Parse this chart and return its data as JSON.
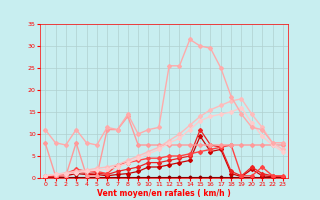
{
  "background_color": "#c8eef0",
  "grid_color": "#b0d0d0",
  "text_color": "#ff0000",
  "xlabel": "Vent moyen/en rafales ( km/h )",
  "xlim": [
    -0.5,
    23.5
  ],
  "ylim": [
    0,
    35
  ],
  "xticks": [
    0,
    1,
    2,
    3,
    4,
    5,
    6,
    7,
    8,
    9,
    10,
    11,
    12,
    13,
    14,
    15,
    16,
    17,
    18,
    19,
    20,
    21,
    22,
    23
  ],
  "yticks": [
    0,
    5,
    10,
    15,
    20,
    25,
    30,
    35
  ],
  "series": [
    {
      "x": [
        0,
        1,
        2,
        3,
        4,
        5,
        6,
        7,
        8,
        9,
        10,
        11,
        12,
        13,
        14,
        15,
        16,
        17,
        18,
        19,
        20,
        21,
        22,
        23
      ],
      "y": [
        0.3,
        0.3,
        0.3,
        0.3,
        0.3,
        0.3,
        0.3,
        0.3,
        0.3,
        0.3,
        0.3,
        0.3,
        0.3,
        0.3,
        0.3,
        0.3,
        0.3,
        0.3,
        0.3,
        0.3,
        0.3,
        0.3,
        0.3,
        0.3
      ],
      "color": "#880000",
      "lw": 0.8,
      "marker": "D",
      "ms": 1.5
    },
    {
      "x": [
        0,
        1,
        2,
        3,
        4,
        5,
        6,
        7,
        8,
        9,
        10,
        11,
        12,
        13,
        14,
        15,
        16,
        17,
        18,
        19,
        20,
        21,
        22,
        23
      ],
      "y": [
        0.3,
        0.3,
        0.5,
        1.0,
        0.8,
        0.8,
        0.5,
        0.8,
        1.0,
        1.5,
        2.5,
        2.5,
        3.0,
        3.5,
        4.0,
        9.5,
        6.0,
        6.5,
        1.0,
        0.3,
        2.0,
        0.5,
        0.3,
        0.3
      ],
      "color": "#cc0000",
      "lw": 0.9,
      "marker": "D",
      "ms": 2
    },
    {
      "x": [
        0,
        1,
        2,
        3,
        4,
        5,
        6,
        7,
        8,
        9,
        10,
        11,
        12,
        13,
        14,
        15,
        16,
        17,
        18,
        19,
        20,
        21,
        22,
        23
      ],
      "y": [
        0.3,
        0.3,
        0.8,
        1.5,
        1.0,
        1.2,
        0.8,
        1.5,
        2.0,
        2.5,
        3.5,
        3.5,
        4.0,
        4.5,
        5.0,
        11.0,
        7.5,
        7.0,
        1.5,
        0.5,
        2.5,
        1.0,
        0.5,
        0.3
      ],
      "color": "#ee2222",
      "lw": 0.9,
      "marker": "D",
      "ms": 2
    },
    {
      "x": [
        0,
        1,
        2,
        3,
        4,
        5,
        6,
        7,
        8,
        9,
        10,
        11,
        12,
        13,
        14,
        15,
        16,
        17,
        18,
        19,
        20,
        21,
        22,
        23
      ],
      "y": [
        0.5,
        0.5,
        1.0,
        2.0,
        1.5,
        1.5,
        1.0,
        3.0,
        3.5,
        4.0,
        4.5,
        4.5,
        5.0,
        5.0,
        5.5,
        6.0,
        6.5,
        7.0,
        7.5,
        0.5,
        0.5,
        2.5,
        0.5,
        0.5
      ],
      "color": "#ff4444",
      "lw": 1.0,
      "marker": "D",
      "ms": 2
    },
    {
      "x": [
        0,
        1,
        2,
        3,
        4,
        5,
        6,
        7,
        8,
        9,
        10,
        11,
        12,
        13,
        14,
        15,
        16,
        17,
        18,
        19,
        20,
        21,
        22,
        23
      ],
      "y": [
        8.0,
        0.5,
        0.5,
        8.0,
        0.5,
        0.5,
        11.0,
        11.0,
        14.0,
        7.5,
        7.5,
        7.5,
        7.5,
        7.5,
        7.5,
        7.5,
        7.5,
        7.5,
        7.5,
        7.5,
        7.5,
        7.5,
        7.5,
        7.5
      ],
      "color": "#ff9999",
      "lw": 1.0,
      "marker": "D",
      "ms": 2
    },
    {
      "x": [
        0,
        1,
        2,
        3,
        4,
        5,
        6,
        7,
        8,
        9,
        10,
        11,
        12,
        13,
        14,
        15,
        16,
        17,
        18,
        19,
        20,
        21,
        22,
        23
      ],
      "y": [
        0.5,
        0.8,
        1.2,
        1.5,
        1.8,
        2.2,
        2.5,
        3.0,
        4.0,
        5.0,
        6.0,
        7.0,
        8.5,
        10.0,
        12.0,
        14.0,
        15.5,
        16.5,
        17.5,
        18.0,
        14.5,
        11.5,
        8.0,
        6.5
      ],
      "color": "#ffbbbb",
      "lw": 1.0,
      "marker": "D",
      "ms": 2
    },
    {
      "x": [
        0,
        1,
        2,
        3,
        4,
        5,
        6,
        7,
        8,
        9,
        10,
        11,
        12,
        13,
        14,
        15,
        16,
        17,
        18,
        19,
        20,
        21,
        22,
        23
      ],
      "y": [
        0.5,
        0.8,
        1.0,
        1.2,
        1.5,
        1.8,
        2.0,
        2.5,
        3.5,
        4.5,
        5.5,
        6.5,
        8.0,
        9.0,
        11.0,
        13.0,
        14.0,
        14.5,
        15.0,
        16.0,
        12.5,
        9.5,
        7.5,
        6.0
      ],
      "color": "#ffcccc",
      "lw": 1.0,
      "marker": "D",
      "ms": 2
    },
    {
      "x": [
        0,
        1,
        2,
        3,
        4,
        5,
        6,
        7,
        8,
        9,
        10,
        11,
        12,
        13,
        14,
        15,
        16,
        17,
        18,
        19,
        20,
        21,
        22,
        23
      ],
      "y": [
        11.0,
        8.0,
        7.5,
        11.0,
        8.0,
        7.5,
        11.5,
        11.0,
        14.5,
        10.0,
        11.0,
        11.5,
        25.5,
        25.5,
        31.5,
        30.0,
        29.5,
        25.0,
        18.5,
        14.5,
        11.5,
        11.0,
        8.0,
        8.0
      ],
      "color": "#ffaaaa",
      "lw": 1.0,
      "marker": "D",
      "ms": 2
    }
  ]
}
